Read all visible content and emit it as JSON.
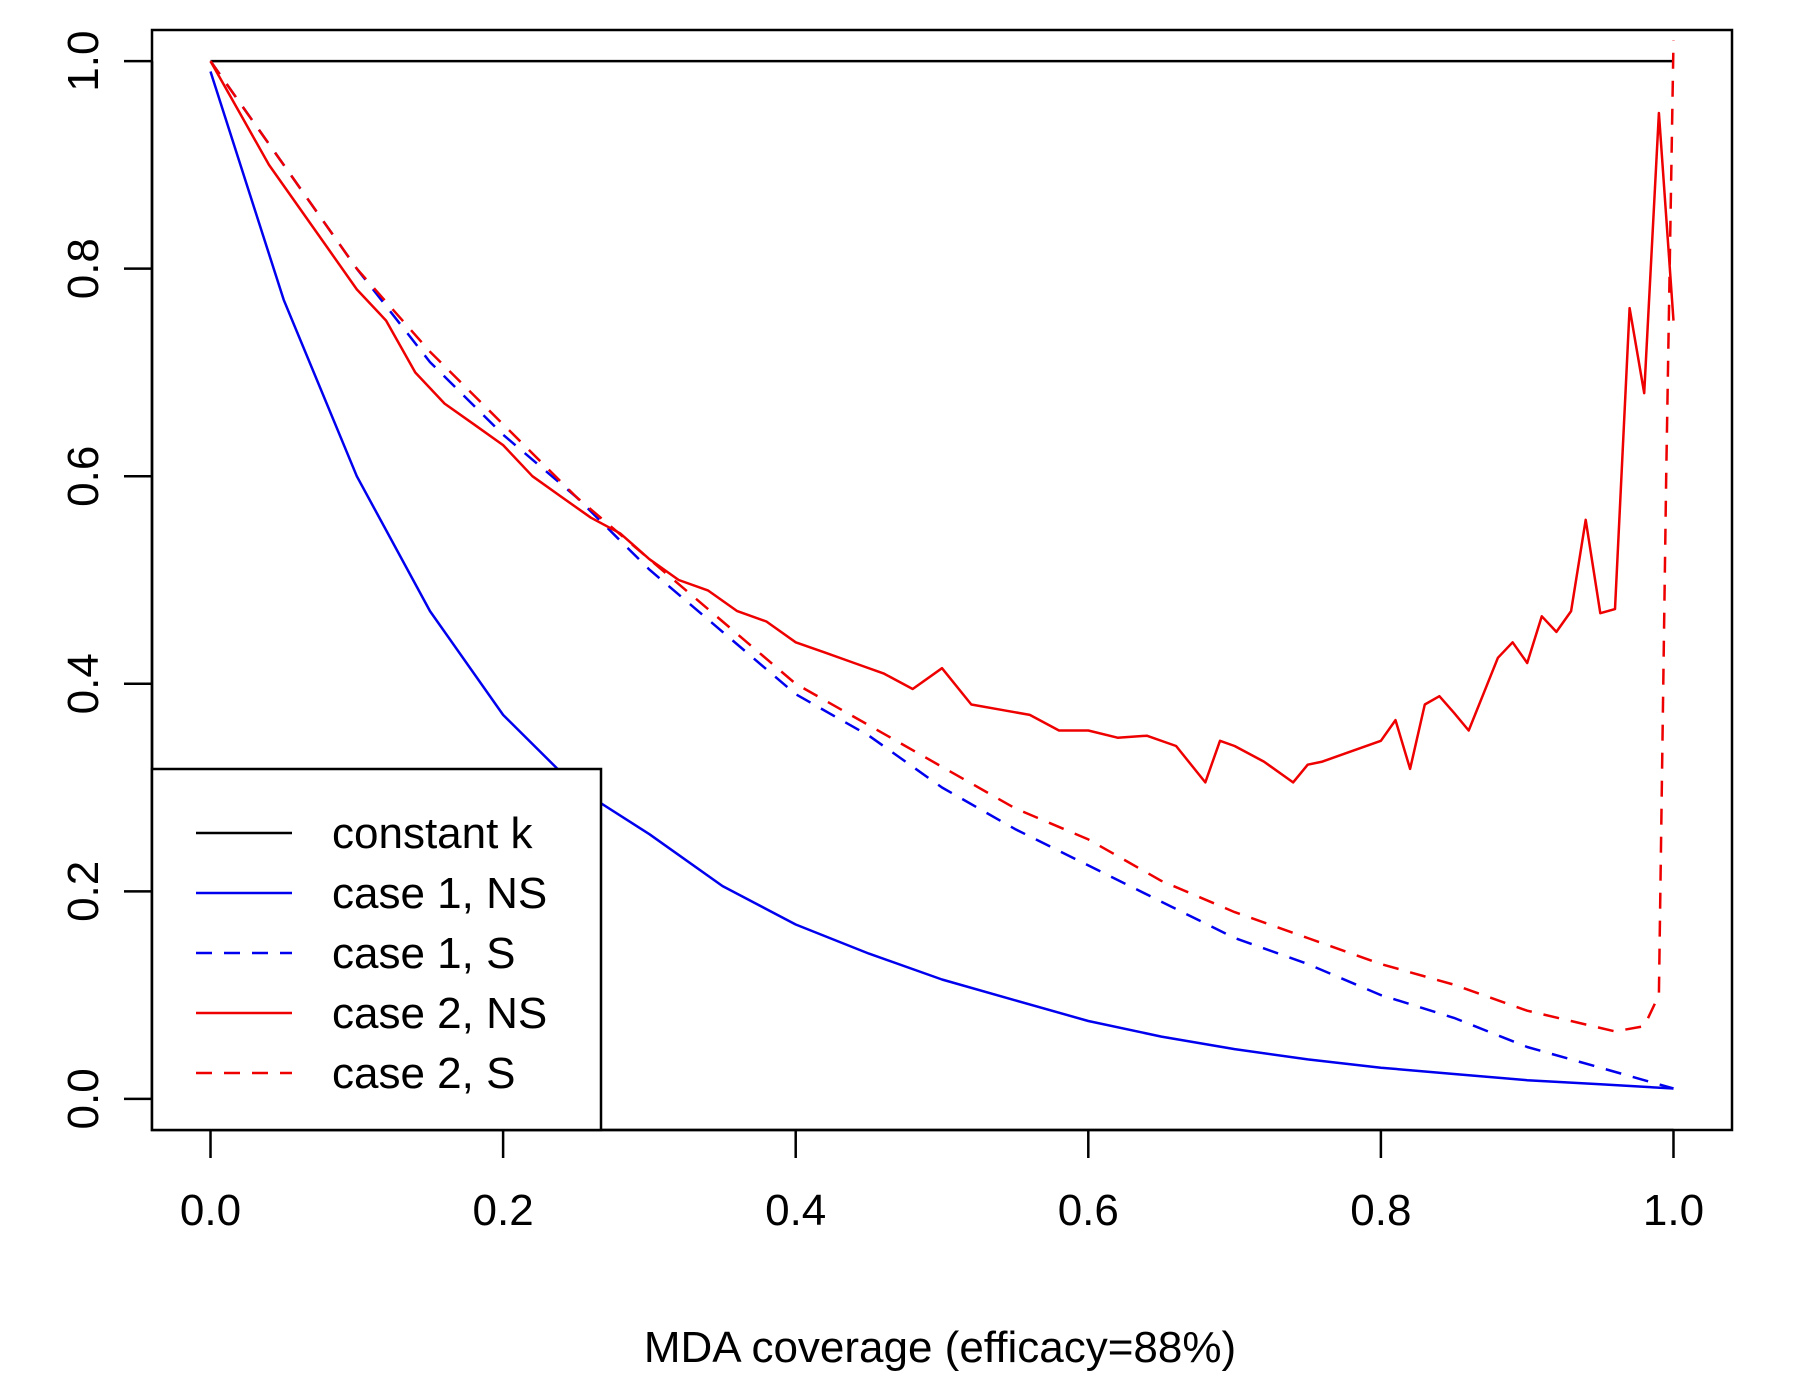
{
  "chart_data": {
    "type": "line",
    "xlabel": "MDA coverage (efficacy=88%)",
    "ylabel": "",
    "xlim": [
      -0.04,
      1.04
    ],
    "ylim": [
      -0.03,
      1.03
    ],
    "x_ticks": [
      "0.0",
      "0.2",
      "0.4",
      "0.6",
      "0.8",
      "1.0"
    ],
    "y_ticks": [
      "0.0",
      "0.2",
      "0.4",
      "0.6",
      "0.8",
      "1.0"
    ],
    "legend_position": "bottom-left",
    "grid": false,
    "series": [
      {
        "name": "constant k",
        "color": "#000000",
        "dash": "solid",
        "x": [
          0.0,
          1.0
        ],
        "y": [
          1.0,
          1.0
        ]
      },
      {
        "name": "case 1, NS",
        "color": "#0000ee",
        "dash": "solid",
        "x": [
          0.0,
          0.05,
          0.1,
          0.15,
          0.2,
          0.25,
          0.3,
          0.35,
          0.4,
          0.45,
          0.5,
          0.55,
          0.6,
          0.65,
          0.7,
          0.75,
          0.8,
          0.85,
          0.9,
          0.95,
          1.0
        ],
        "y": [
          0.99,
          0.77,
          0.6,
          0.47,
          0.37,
          0.3,
          0.255,
          0.205,
          0.168,
          0.14,
          0.115,
          0.095,
          0.075,
          0.06,
          0.048,
          0.038,
          0.03,
          0.024,
          0.018,
          0.014,
          0.01
        ]
      },
      {
        "name": "case 1, S",
        "color": "#0000ee",
        "dash": "dashed",
        "x": [
          0.0,
          0.05,
          0.1,
          0.15,
          0.2,
          0.25,
          0.3,
          0.35,
          0.4,
          0.45,
          0.5,
          0.55,
          0.6,
          0.65,
          0.7,
          0.75,
          0.8,
          0.85,
          0.9,
          0.95,
          1.0
        ],
        "y": [
          1.0,
          0.9,
          0.8,
          0.71,
          0.64,
          0.58,
          0.51,
          0.45,
          0.39,
          0.35,
          0.3,
          0.26,
          0.225,
          0.19,
          0.155,
          0.13,
          0.1,
          0.078,
          0.05,
          0.03,
          0.01
        ]
      },
      {
        "name": "case 2, NS",
        "color": "#ee0000",
        "dash": "solid",
        "x": [
          0.0,
          0.02,
          0.04,
          0.06,
          0.08,
          0.1,
          0.12,
          0.14,
          0.16,
          0.18,
          0.2,
          0.22,
          0.24,
          0.26,
          0.28,
          0.3,
          0.32,
          0.34,
          0.36,
          0.38,
          0.4,
          0.42,
          0.44,
          0.46,
          0.48,
          0.5,
          0.52,
          0.54,
          0.56,
          0.58,
          0.6,
          0.62,
          0.64,
          0.66,
          0.68,
          0.69,
          0.7,
          0.72,
          0.74,
          0.75,
          0.76,
          0.78,
          0.8,
          0.81,
          0.82,
          0.83,
          0.84,
          0.85,
          0.86,
          0.87,
          0.88,
          0.89,
          0.9,
          0.91,
          0.92,
          0.93,
          0.94,
          0.95,
          0.96,
          0.97,
          0.98,
          0.99,
          1.0
        ],
        "y": [
          1.0,
          0.95,
          0.9,
          0.86,
          0.82,
          0.78,
          0.75,
          0.7,
          0.67,
          0.65,
          0.63,
          0.6,
          0.58,
          0.56,
          0.545,
          0.52,
          0.5,
          0.49,
          0.47,
          0.46,
          0.44,
          0.43,
          0.42,
          0.41,
          0.395,
          0.415,
          0.38,
          0.375,
          0.37,
          0.355,
          0.355,
          0.348,
          0.35,
          0.34,
          0.305,
          0.345,
          0.34,
          0.325,
          0.305,
          0.322,
          0.325,
          0.335,
          0.345,
          0.365,
          0.318,
          0.38,
          0.388,
          0.372,
          0.355,
          0.39,
          0.425,
          0.44,
          0.42,
          0.465,
          0.45,
          0.47,
          0.558,
          0.468,
          0.472,
          0.762,
          0.68,
          0.95,
          0.75
        ]
      },
      {
        "name": "case 2, S",
        "color": "#ee0000",
        "dash": "dashed",
        "x": [
          0.0,
          0.05,
          0.1,
          0.15,
          0.2,
          0.25,
          0.3,
          0.35,
          0.4,
          0.45,
          0.5,
          0.55,
          0.6,
          0.65,
          0.7,
          0.75,
          0.8,
          0.85,
          0.9,
          0.93,
          0.96,
          0.98,
          0.99,
          0.995,
          1.0
        ],
        "y": [
          1.0,
          0.9,
          0.8,
          0.72,
          0.65,
          0.58,
          0.52,
          0.46,
          0.4,
          0.36,
          0.32,
          0.28,
          0.25,
          0.21,
          0.18,
          0.155,
          0.13,
          0.11,
          0.085,
          0.075,
          0.065,
          0.07,
          0.1,
          0.6,
          1.02
        ]
      }
    ]
  }
}
